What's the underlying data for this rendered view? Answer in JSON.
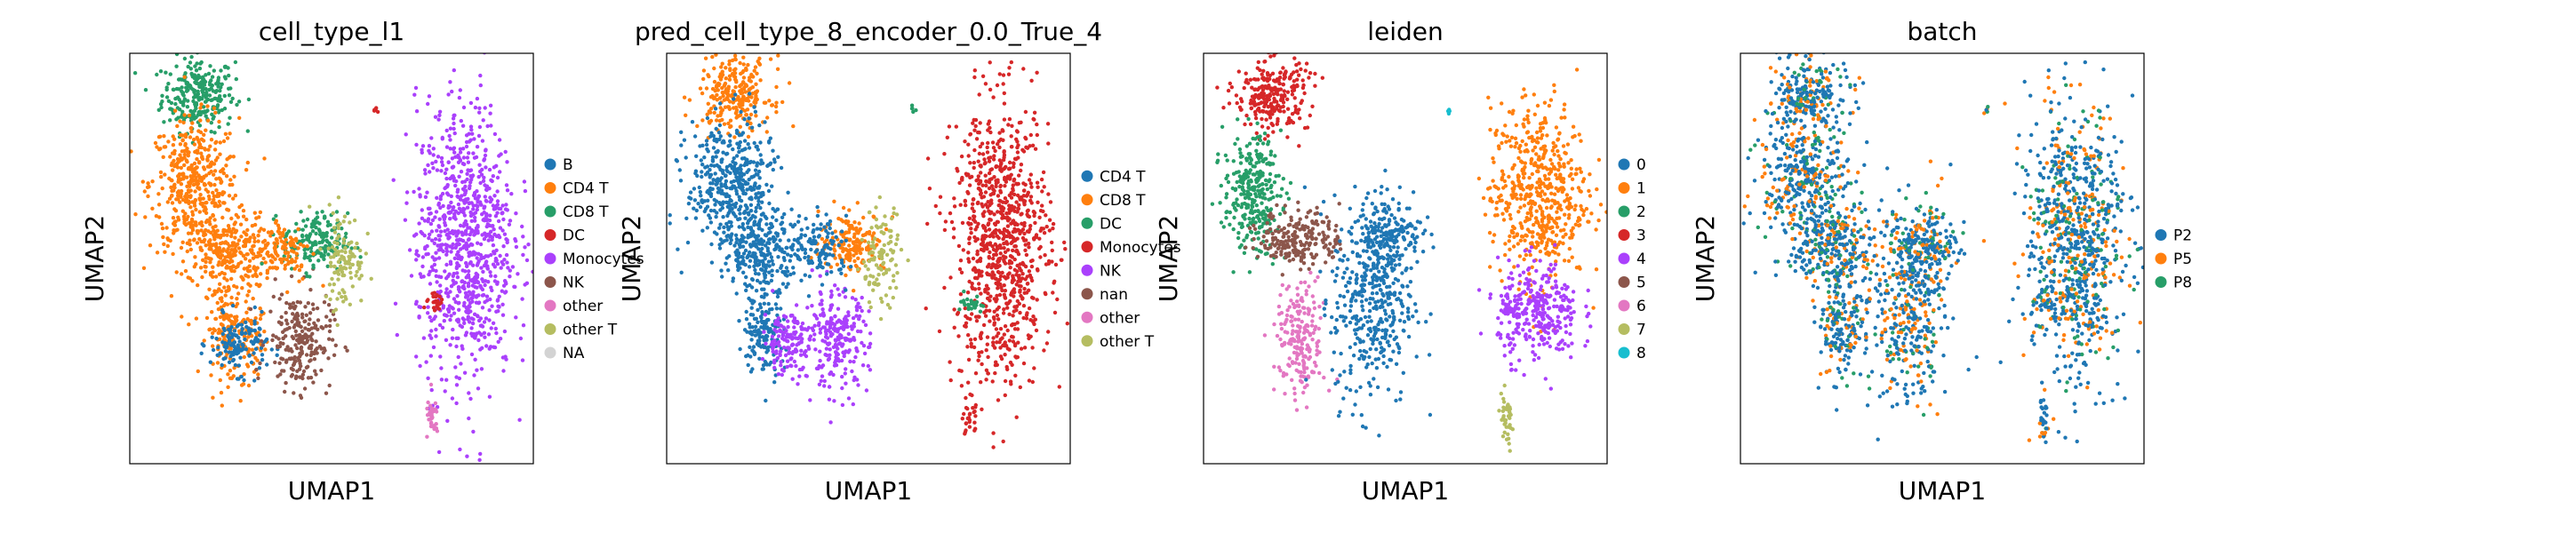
{
  "figure": {
    "type": "umap-panels",
    "layout": "1x4 grid"
  },
  "chart_data": [
    {
      "type": "scatter",
      "title": "cell_type_l1",
      "xlabel": "UMAP1",
      "ylabel": "UMAP2",
      "legend_position": "right",
      "categories": [
        {
          "label": "B",
          "color": "#1f77b4"
        },
        {
          "label": "CD4 T",
          "color": "#ff7f0e"
        },
        {
          "label": "CD8 T",
          "color": "#279e68"
        },
        {
          "label": "DC",
          "color": "#d62728"
        },
        {
          "label": "Monocytes",
          "color": "#aa40fc"
        },
        {
          "label": "NK",
          "color": "#8c564b"
        },
        {
          "label": "other",
          "color": "#e377c2"
        },
        {
          "label": "other T",
          "color": "#b5bd61"
        },
        {
          "label": "NA",
          "color": "#d3d3d3"
        }
      ],
      "clusters": [
        {
          "x": 0.17,
          "y": 0.9,
          "sx": 0.045,
          "sy": 0.045,
          "n": 260,
          "cat": 2
        },
        {
          "x": 0.16,
          "y": 0.68,
          "sx": 0.055,
          "sy": 0.08,
          "n": 420,
          "cat": 1
        },
        {
          "x": 0.24,
          "y": 0.52,
          "sx": 0.05,
          "sy": 0.045,
          "n": 260,
          "cat": 1
        },
        {
          "x": 0.24,
          "y": 0.33,
          "sx": 0.025,
          "sy": 0.06,
          "n": 150,
          "cat": 1
        },
        {
          "x": 0.3,
          "y": 0.3,
          "sx": 0.02,
          "sy": 0.05,
          "n": 70,
          "cat": 1
        },
        {
          "x": 0.27,
          "y": 0.29,
          "sx": 0.035,
          "sy": 0.035,
          "n": 130,
          "cat": 0
        },
        {
          "x": 0.42,
          "y": 0.3,
          "sx": 0.04,
          "sy": 0.06,
          "n": 230,
          "cat": 5
        },
        {
          "x": 0.46,
          "y": 0.54,
          "sx": 0.04,
          "sy": 0.035,
          "n": 170,
          "cat": 2
        },
        {
          "x": 0.38,
          "y": 0.52,
          "sx": 0.035,
          "sy": 0.04,
          "n": 110,
          "cat": 1
        },
        {
          "x": 0.53,
          "y": 0.5,
          "sx": 0.025,
          "sy": 0.06,
          "n": 110,
          "cat": 7
        },
        {
          "x": 0.83,
          "y": 0.54,
          "sx": 0.06,
          "sy": 0.17,
          "n": 900,
          "cat": 4
        },
        {
          "x": 0.76,
          "y": 0.39,
          "sx": 0.015,
          "sy": 0.01,
          "n": 25,
          "cat": 3
        },
        {
          "x": 0.61,
          "y": 0.86,
          "sx": 0.003,
          "sy": 0.005,
          "n": 5,
          "cat": 3
        },
        {
          "x": 0.75,
          "y": 0.11,
          "sx": 0.008,
          "sy": 0.025,
          "n": 30,
          "cat": 6
        }
      ]
    },
    {
      "type": "scatter",
      "title": "pred_cell_type_8_encoder_0.0_True_4",
      "xlabel": "UMAP1",
      "ylabel": "UMAP2",
      "legend_position": "right",
      "categories": [
        {
          "label": "CD4 T",
          "color": "#1f77b4"
        },
        {
          "label": "CD8 T",
          "color": "#ff7f0e"
        },
        {
          "label": "DC",
          "color": "#279e68"
        },
        {
          "label": "Monocytes",
          "color": "#d62728"
        },
        {
          "label": "NK",
          "color": "#aa40fc"
        },
        {
          "label": "nan",
          "color": "#8c564b"
        },
        {
          "label": "other",
          "color": "#e377c2"
        },
        {
          "label": "other T",
          "color": "#b5bd61"
        }
      ],
      "clusters": [
        {
          "x": 0.17,
          "y": 0.9,
          "sx": 0.045,
          "sy": 0.045,
          "n": 260,
          "cat": 1
        },
        {
          "x": 0.16,
          "y": 0.68,
          "sx": 0.055,
          "sy": 0.08,
          "n": 420,
          "cat": 0
        },
        {
          "x": 0.24,
          "y": 0.52,
          "sx": 0.05,
          "sy": 0.045,
          "n": 260,
          "cat": 0
        },
        {
          "x": 0.24,
          "y": 0.33,
          "sx": 0.025,
          "sy": 0.06,
          "n": 150,
          "cat": 0
        },
        {
          "x": 0.3,
          "y": 0.3,
          "sx": 0.03,
          "sy": 0.04,
          "n": 140,
          "cat": 4
        },
        {
          "x": 0.42,
          "y": 0.3,
          "sx": 0.04,
          "sy": 0.06,
          "n": 230,
          "cat": 4
        },
        {
          "x": 0.46,
          "y": 0.54,
          "sx": 0.04,
          "sy": 0.035,
          "n": 170,
          "cat": 1
        },
        {
          "x": 0.38,
          "y": 0.52,
          "sx": 0.035,
          "sy": 0.04,
          "n": 110,
          "cat": 0
        },
        {
          "x": 0.53,
          "y": 0.5,
          "sx": 0.025,
          "sy": 0.06,
          "n": 110,
          "cat": 7
        },
        {
          "x": 0.83,
          "y": 0.54,
          "sx": 0.06,
          "sy": 0.17,
          "n": 900,
          "cat": 3
        },
        {
          "x": 0.76,
          "y": 0.39,
          "sx": 0.015,
          "sy": 0.01,
          "n": 25,
          "cat": 2
        },
        {
          "x": 0.61,
          "y": 0.86,
          "sx": 0.003,
          "sy": 0.005,
          "n": 5,
          "cat": 2
        },
        {
          "x": 0.75,
          "y": 0.11,
          "sx": 0.008,
          "sy": 0.025,
          "n": 30,
          "cat": 3
        }
      ]
    },
    {
      "type": "scatter",
      "title": "leiden",
      "xlabel": "UMAP1",
      "ylabel": "UMAP2",
      "legend_position": "right",
      "categories": [
        {
          "label": "0",
          "color": "#1f77b4"
        },
        {
          "label": "1",
          "color": "#ff7f0e"
        },
        {
          "label": "2",
          "color": "#279e68"
        },
        {
          "label": "3",
          "color": "#d62728"
        },
        {
          "label": "4",
          "color": "#aa40fc"
        },
        {
          "label": "5",
          "color": "#8c564b"
        },
        {
          "label": "6",
          "color": "#e377c2"
        },
        {
          "label": "7",
          "color": "#b5bd61"
        },
        {
          "label": "8",
          "color": "#17becf"
        }
      ],
      "clusters": [
        {
          "x": 0.17,
          "y": 0.9,
          "sx": 0.045,
          "sy": 0.045,
          "n": 260,
          "cat": 3
        },
        {
          "x": 0.12,
          "y": 0.66,
          "sx": 0.035,
          "sy": 0.07,
          "n": 300,
          "cat": 2
        },
        {
          "x": 0.24,
          "y": 0.55,
          "sx": 0.05,
          "sy": 0.035,
          "n": 220,
          "cat": 5
        },
        {
          "x": 0.24,
          "y": 0.3,
          "sx": 0.03,
          "sy": 0.07,
          "n": 200,
          "cat": 6
        },
        {
          "x": 0.42,
          "y": 0.4,
          "sx": 0.05,
          "sy": 0.13,
          "n": 420,
          "cat": 0
        },
        {
          "x": 0.46,
          "y": 0.56,
          "sx": 0.04,
          "sy": 0.04,
          "n": 150,
          "cat": 0
        },
        {
          "x": 0.83,
          "y": 0.66,
          "sx": 0.06,
          "sy": 0.11,
          "n": 550,
          "cat": 1
        },
        {
          "x": 0.83,
          "y": 0.37,
          "sx": 0.05,
          "sy": 0.06,
          "n": 300,
          "cat": 4
        },
        {
          "x": 0.76,
          "y": 0.37,
          "sx": 0.015,
          "sy": 0.01,
          "n": 25,
          "cat": 4
        },
        {
          "x": 0.61,
          "y": 0.86,
          "sx": 0.003,
          "sy": 0.005,
          "n": 5,
          "cat": 8
        },
        {
          "x": 0.75,
          "y": 0.1,
          "sx": 0.01,
          "sy": 0.035,
          "n": 40,
          "cat": 7
        }
      ]
    },
    {
      "type": "scatter",
      "title": "batch",
      "xlabel": "UMAP1",
      "ylabel": "UMAP2",
      "legend_position": "right",
      "categories": [
        {
          "label": "P2",
          "color": "#1f77b4"
        },
        {
          "label": "P5",
          "color": "#ff7f0e"
        },
        {
          "label": "P8",
          "color": "#279e68"
        }
      ],
      "mixture": [
        0.62,
        0.24,
        0.14
      ],
      "clusters": [
        {
          "x": 0.17,
          "y": 0.9,
          "sx": 0.045,
          "sy": 0.045,
          "n": 260
        },
        {
          "x": 0.16,
          "y": 0.68,
          "sx": 0.055,
          "sy": 0.08,
          "n": 420
        },
        {
          "x": 0.24,
          "y": 0.52,
          "sx": 0.05,
          "sy": 0.045,
          "n": 260
        },
        {
          "x": 0.25,
          "y": 0.33,
          "sx": 0.035,
          "sy": 0.06,
          "n": 200
        },
        {
          "x": 0.42,
          "y": 0.38,
          "sx": 0.05,
          "sy": 0.12,
          "n": 420
        },
        {
          "x": 0.46,
          "y": 0.54,
          "sx": 0.04,
          "sy": 0.035,
          "n": 170
        },
        {
          "x": 0.83,
          "y": 0.54,
          "sx": 0.06,
          "sy": 0.17,
          "n": 900
        },
        {
          "x": 0.76,
          "y": 0.39,
          "sx": 0.015,
          "sy": 0.01,
          "n": 25
        },
        {
          "x": 0.61,
          "y": 0.86,
          "sx": 0.003,
          "sy": 0.005,
          "n": 5
        },
        {
          "x": 0.75,
          "y": 0.11,
          "sx": 0.008,
          "sy": 0.025,
          "n": 30
        }
      ]
    }
  ]
}
